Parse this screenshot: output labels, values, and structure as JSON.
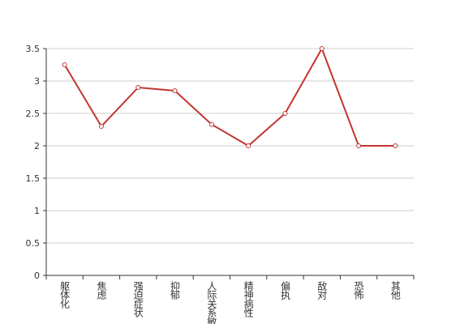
{
  "chart_data": {
    "type": "line",
    "categories": [
      "躯体化",
      "焦虑",
      "强迫症状",
      "抑郁",
      "人际关系敏感",
      "精神病性",
      "偏执",
      "敌对",
      "恐怖",
      "其他"
    ],
    "values": [
      3.25,
      2.3,
      2.9,
      2.85,
      2.33,
      2.0,
      2.5,
      3.5,
      2.0,
      2.0
    ],
    "color": "#c23531",
    "ylim": [
      0,
      3.5
    ],
    "yticks": [
      0,
      0.5,
      1,
      1.5,
      2,
      2.5,
      3,
      3.5
    ],
    "grid": true
  }
}
